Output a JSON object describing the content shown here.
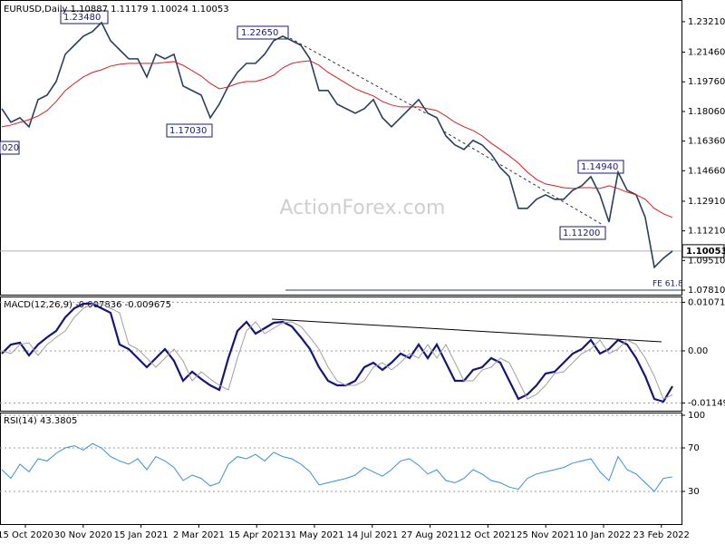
{
  "chart_data": [
    {
      "type": "line",
      "title": "EURUSD,Daily  1.10887 1.11179 1.10024 1.10053",
      "watermark": "ActionForex.com",
      "ylim": [
        1.0755,
        1.2435
      ],
      "yticks": [
        {
          "value": 1.2321,
          "label": "1.23210"
        },
        {
          "value": 1.2146,
          "label": "1.21460"
        },
        {
          "value": 1.1976,
          "label": "1.19760"
        },
        {
          "value": 1.1806,
          "label": "1.18060"
        },
        {
          "value": 1.1636,
          "label": "1.16360"
        },
        {
          "value": 1.1466,
          "label": "1.14660"
        },
        {
          "value": 1.1291,
          "label": "1.12910"
        },
        {
          "value": 1.1121,
          "label": "1.11210"
        },
        {
          "value": 1.0951,
          "label": "1.09510"
        },
        {
          "value": 1.0781,
          "label": "1.07810"
        }
      ],
      "last_price": 1.10053,
      "annotations": [
        "1.23480",
        "1.22650",
        "1.17030",
        "020",
        "1.14940",
        "1.11200",
        "FE 61.8"
      ],
      "series": [
        {
          "name": "EURUSD",
          "color": "#2b3f5c",
          "values": [
            1.1822,
            1.1744,
            1.177,
            1.1718,
            1.1874,
            1.19,
            1.1978,
            1.2134,
            1.2186,
            1.2238,
            1.2264,
            1.2316,
            1.2212,
            1.216,
            1.2108,
            1.2108,
            1.2004,
            1.2134,
            1.2108,
            1.2134,
            1.1952,
            1.1926,
            1.19,
            1.177,
            1.1848,
            1.1952,
            1.203,
            1.2082,
            1.2082,
            1.2134,
            1.2212,
            1.2238,
            1.2212,
            1.2186,
            1.2108,
            1.1926,
            1.1926,
            1.1848,
            1.1822,
            1.1796,
            1.1822,
            1.1874,
            1.177,
            1.1718,
            1.177,
            1.1822,
            1.1874,
            1.1796,
            1.177,
            1.1666,
            1.1614,
            1.1588,
            1.164,
            1.1614,
            1.1562,
            1.1484,
            1.1432,
            1.125,
            1.125,
            1.1302,
            1.1328,
            1.1302,
            1.1302,
            1.1354,
            1.138,
            1.1432,
            1.1328,
            1.1172,
            1.1458,
            1.1354,
            1.1328,
            1.1198,
            1.0912,
            1.0964,
            1.1005
          ]
        },
        {
          "name": "MA",
          "color": "#d42020",
          "values": [
            1.1718,
            1.1728,
            1.1744,
            1.1759,
            1.178,
            1.1811,
            1.1863,
            1.1926,
            1.1967,
            1.2004,
            1.203,
            1.2045,
            1.2066,
            1.2077,
            1.2082,
            1.2082,
            1.2082,
            1.2082,
            1.2087,
            1.2092,
            1.2071,
            1.204,
            1.2009,
            1.1967,
            1.1936,
            1.1947,
            1.1967,
            1.1978,
            1.1978,
            1.1993,
            1.2014,
            1.2056,
            1.2082,
            1.2092,
            1.2097,
            1.2071,
            1.203,
            1.1999,
            1.1967,
            1.1936,
            1.1915,
            1.1895,
            1.1863,
            1.1843,
            1.1832,
            1.1832,
            1.1832,
            1.1822,
            1.1811,
            1.178,
            1.1744,
            1.1718,
            1.1697,
            1.1666,
            1.1624,
            1.1588,
            1.1551,
            1.151,
            1.1458,
            1.1416,
            1.139,
            1.138,
            1.1369,
            1.1364,
            1.1369,
            1.1369,
            1.1364,
            1.138,
            1.1364,
            1.1343,
            1.1328,
            1.1302,
            1.125,
            1.1219,
            1.1198
          ]
        }
      ],
      "x_labels": [
        "15 Oct 2020",
        "30 Nov 2020",
        "15 Jan 2021",
        "2 Mar 2021",
        "15 Apr 2021",
        "31 May 2021",
        "14 Jul 2021",
        "27 Aug 2021",
        "12 Oct 2021",
        "25 Nov 2021",
        "10 Jan 2022",
        "23 Feb 2022"
      ]
    },
    {
      "type": "line",
      "title": "MACD(12,26,9) -0.007836 -0.009675",
      "ylim": [
        -0.0132,
        0.012
      ],
      "yticks": [
        0.010719,
        {
          "value": 0,
          "label": "0.00"
        },
        -0.011499
      ],
      "series": [
        {
          "name": "MACD",
          "color": "#16167a",
          "values": [
            -0.0006,
            0.0014,
            0.0018,
            -0.001,
            0.0014,
            0.003,
            0.0044,
            0.0074,
            0.0094,
            0.0104,
            0.0104,
            0.0094,
            0.0084,
            0.0014,
            0.0004,
            -0.0016,
            -0.0036,
            -0.0016,
            0.0004,
            -0.0022,
            -0.0066,
            -0.0046,
            -0.0062,
            -0.0076,
            -0.0086,
            -0.0016,
            0.0044,
            0.0064,
            0.0038,
            0.005,
            0.0062,
            0.0064,
            0.0054,
            0.003,
            0.0004,
            -0.0036,
            -0.0066,
            -0.0076,
            -0.0076,
            -0.0066,
            -0.0036,
            -0.0026,
            -0.0042,
            -0.0026,
            -0.0006,
            -0.0016,
            0.0014,
            -0.0016,
            0.0014,
            -0.0026,
            -0.0066,
            -0.0066,
            -0.0042,
            -0.0036,
            -0.0016,
            -0.0026,
            -0.0066,
            -0.0106,
            -0.0096,
            -0.0076,
            -0.005,
            -0.0046,
            -0.0026,
            -0.0006,
            0.0004,
            0.0024,
            -0.0006,
            0.0004,
            0.0024,
            0.0014,
            -0.0016,
            -0.0056,
            -0.0106,
            -0.0112,
            -0.0078
          ]
        },
        {
          "name": "Signal",
          "color": "#a0a0a0",
          "values": [
            0,
            -0.0006,
            0.0014,
            0.0018,
            -0.001,
            0.0014,
            0.003,
            0.0044,
            0.0074,
            0.0094,
            0.0104,
            0.0104,
            0.0094,
            0.0084,
            0.0014,
            0.0004,
            -0.0016,
            -0.0036,
            -0.0016,
            0.0004,
            -0.0022,
            -0.0066,
            -0.0046,
            -0.0062,
            -0.0076,
            -0.0086,
            -0.0016,
            0.0044,
            0.0064,
            0.0038,
            0.005,
            0.0062,
            0.0064,
            0.0054,
            0.003,
            0.0004,
            -0.0036,
            -0.0066,
            -0.0076,
            -0.0076,
            -0.0066,
            -0.0036,
            -0.0026,
            -0.0042,
            -0.0026,
            -0.0006,
            -0.0016,
            0.0014,
            -0.0016,
            0.0014,
            -0.0026,
            -0.0066,
            -0.0066,
            -0.0042,
            -0.0036,
            -0.0016,
            -0.0026,
            -0.0066,
            -0.0106,
            -0.0096,
            -0.0076,
            -0.005,
            -0.0046,
            -0.0026,
            -0.0006,
            0.0004,
            0.0024,
            -0.0006,
            0.0004,
            0.0024,
            0.0014,
            -0.0016,
            -0.0056,
            -0.0106,
            -0.0097
          ]
        }
      ]
    },
    {
      "type": "line",
      "title": "RSI(14) 43.3805",
      "ylim": [
        0,
        100
      ],
      "yticks": [
        100,
        70,
        30
      ],
      "series": [
        {
          "name": "RSI",
          "color": "#3a8fd9",
          "values": [
            50,
            42,
            55,
            48,
            60,
            58,
            65,
            70,
            72,
            68,
            74,
            70,
            62,
            58,
            55,
            60,
            50,
            62,
            58,
            52,
            40,
            45,
            42,
            35,
            38,
            55,
            62,
            60,
            64,
            58,
            66,
            62,
            60,
            55,
            48,
            36,
            38,
            40,
            42,
            45,
            52,
            48,
            44,
            50,
            58,
            60,
            54,
            46,
            50,
            40,
            38,
            42,
            50,
            46,
            40,
            38,
            34,
            32,
            42,
            46,
            48,
            50,
            52,
            56,
            58,
            60,
            48,
            40,
            62,
            50,
            46,
            38,
            30,
            42,
            43.3805
          ]
        }
      ]
    }
  ]
}
